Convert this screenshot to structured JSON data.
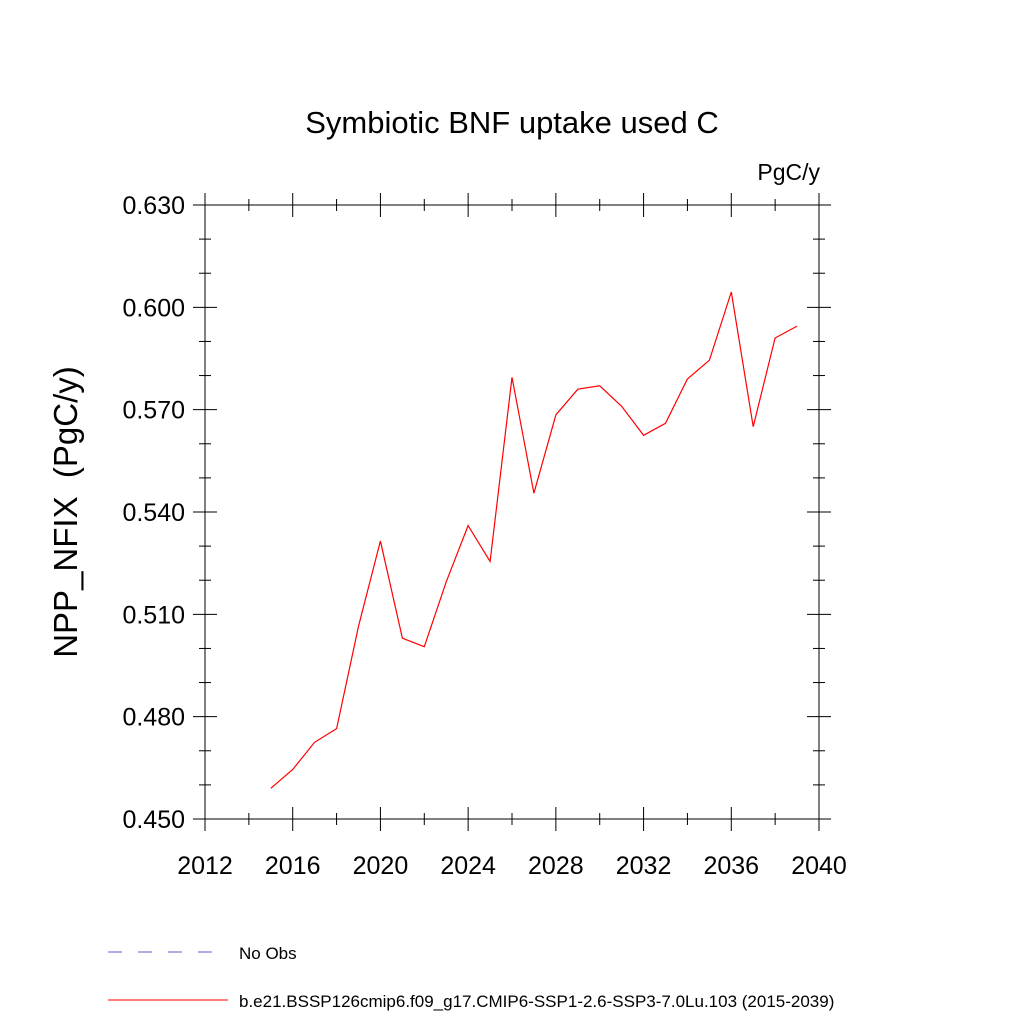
{
  "chart_data": {
    "type": "line",
    "title": "Symbiotic BNF uptake used C",
    "units_label": "PgC/y",
    "ylabel": "NPP_NFIX  (PgC/y)",
    "xlabel": "",
    "xlim": [
      2012,
      2040
    ],
    "ylim": [
      0.45,
      0.63
    ],
    "x_ticks": [
      2012,
      2016,
      2020,
      2024,
      2028,
      2032,
      2036,
      2040
    ],
    "x_tick_labels": [
      "2012",
      "2016",
      "2020",
      "2024",
      "2028",
      "2032",
      "2036",
      "2040"
    ],
    "y_ticks": [
      0.45,
      0.48,
      0.51,
      0.54,
      0.57,
      0.6,
      0.63
    ],
    "y_tick_labels": [
      "0.450",
      "0.480",
      "0.510",
      "0.540",
      "0.570",
      "0.600",
      "0.630"
    ],
    "grid": false,
    "legend_position": "bottom-left",
    "series": [
      {
        "name": "b.e21.BSSP126cmip6.f09_g17.CMIP6-SSP1-2.6-SSP3-7.0Lu.103 (2015-2039)",
        "color": "#ff0000",
        "style": "solid",
        "x": [
          2015,
          2016,
          2017,
          2018,
          2019,
          2020,
          2021,
          2022,
          2023,
          2024,
          2025,
          2026,
          2027,
          2028,
          2029,
          2030,
          2031,
          2032,
          2033,
          2034,
          2035,
          2036,
          2037,
          2038,
          2039
        ],
        "y": [
          0.459,
          0.4645,
          0.4725,
          0.4765,
          0.5065,
          0.5315,
          0.503,
          0.5005,
          0.5195,
          0.536,
          0.5255,
          0.5795,
          0.5455,
          0.5685,
          0.576,
          0.577,
          0.571,
          0.5625,
          0.566,
          0.579,
          0.5845,
          0.6045,
          0.565,
          0.591,
          0.5945
        ]
      }
    ],
    "legend": [
      {
        "label": "No Obs",
        "color": "#6a5acd",
        "style": "dashed"
      },
      {
        "label": "b.e21.BSSP126cmip6.f09_g17.CMIP6-SSP1-2.6-SSP3-7.0Lu.103 (2015-2039)",
        "color": "#ff0000",
        "style": "solid"
      }
    ]
  }
}
